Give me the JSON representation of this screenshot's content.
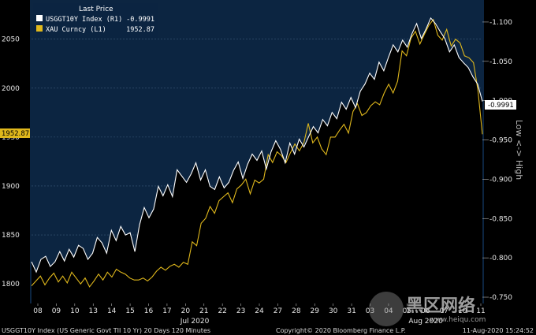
{
  "chart_data": {
    "type": "line",
    "legend": {
      "title": "Last Price",
      "entries": [
        {
          "name": "USGGT10Y Index  (R1)",
          "value": "-0.9991",
          "color": "#ffffff"
        },
        {
          "name": "XAU Curncy  (L1)",
          "value": "1952.87",
          "color": "#e0b81c"
        }
      ]
    },
    "left_axis": {
      "ticks": [
        "1800",
        "1850",
        "1900",
        "1950",
        "2000",
        "2050"
      ],
      "ylim": [
        1780,
        2090
      ]
    },
    "right_axis": {
      "ticks": [
        "-1.100",
        "-1.050",
        "-1.000",
        "-0.950",
        "-0.900",
        "-0.850",
        "-0.800",
        "-0.750"
      ],
      "ylim": [
        -1.128,
        -0.742
      ],
      "inverted": true,
      "label": "Low <-> High"
    },
    "x_ticks": [
      "08",
      "09",
      "10",
      "13",
      "14",
      "15",
      "16",
      "17",
      "20",
      "21",
      "22",
      "23",
      "24",
      "27",
      "28",
      "29",
      "30",
      "31",
      "03",
      "04",
      "05",
      "06",
      "07",
      "10",
      "11"
    ],
    "month_labels": [
      "Jul 2020",
      "Aug 2020"
    ],
    "last_price_tags": {
      "left": "1952.87",
      "right": "-0.9991"
    },
    "series": [
      {
        "name": "USGGT10Y Index",
        "axis": "right",
        "values": [
          -0.795,
          -0.782,
          -0.798,
          -0.802,
          -0.789,
          -0.795,
          -0.808,
          -0.796,
          -0.811,
          -0.801,
          -0.816,
          -0.812,
          -0.798,
          -0.806,
          -0.826,
          -0.819,
          -0.806,
          -0.835,
          -0.822,
          -0.84,
          -0.829,
          -0.832,
          -0.808,
          -0.842,
          -0.864,
          -0.851,
          -0.862,
          -0.891,
          -0.879,
          -0.893,
          -0.878,
          -0.912,
          -0.904,
          -0.896,
          -0.907,
          -0.921,
          -0.899,
          -0.912,
          -0.891,
          -0.887,
          -0.903,
          -0.889,
          -0.896,
          -0.911,
          -0.922,
          -0.901,
          -0.919,
          -0.932,
          -0.924,
          -0.936,
          -0.913,
          -0.935,
          -0.949,
          -0.938,
          -0.921,
          -0.946,
          -0.932,
          -0.951,
          -0.941,
          -0.954,
          -0.967,
          -0.959,
          -0.976,
          -0.968,
          -0.985,
          -0.977,
          -0.998,
          -0.989,
          -1.004,
          -0.991,
          -1.012,
          -1.021,
          -1.035,
          -1.027,
          -1.049,
          -1.038,
          -1.055,
          -1.071,
          -1.062,
          -1.077,
          -1.068,
          -1.085,
          -1.098,
          -1.079,
          -1.091,
          -1.105,
          -1.098,
          -1.088,
          -1.079,
          -1.062,
          -1.071,
          -1.055,
          -1.048,
          -1.042,
          -1.03,
          -1.021,
          -0.999
        ]
      },
      {
        "name": "XAU Curncy",
        "axis": "left",
        "values": [
          1798,
          1803,
          1808,
          1799,
          1806,
          1811,
          1802,
          1808,
          1801,
          1812,
          1806,
          1800,
          1806,
          1797,
          1803,
          1810,
          1804,
          1812,
          1807,
          1815,
          1812,
          1810,
          1806,
          1804,
          1804,
          1806,
          1803,
          1807,
          1813,
          1817,
          1814,
          1818,
          1820,
          1817,
          1822,
          1820,
          1843,
          1839,
          1862,
          1867,
          1879,
          1872,
          1885,
          1889,
          1893,
          1883,
          1897,
          1901,
          1907,
          1892,
          1906,
          1903,
          1907,
          1932,
          1924,
          1935,
          1931,
          1924,
          1934,
          1943,
          1936,
          1944,
          1964,
          1944,
          1950,
          1938,
          1932,
          1950,
          1950,
          1957,
          1963,
          1954,
          1976,
          1984,
          1972,
          1975,
          1982,
          1986,
          1983,
          1995,
          2004,
          1995,
          2007,
          2038,
          2033,
          2051,
          2058,
          2045,
          2055,
          2064,
          2070,
          2054,
          2049,
          2060,
          2043,
          2050,
          2046,
          2033,
          2031,
          2026,
          1998,
          1952.87
        ]
      }
    ]
  },
  "footer": {
    "left": "USGGT10Y Index (US Generic Govt TII 10 Yr) 20 Days 120 Minutes",
    "center": "Copyright© 2020 Bloomberg Finance L.P.",
    "right": "11-Aug-2020 15:24:52"
  },
  "watermark": {
    "main": "黑区网络",
    "sub": "www.heiqu.com"
  }
}
